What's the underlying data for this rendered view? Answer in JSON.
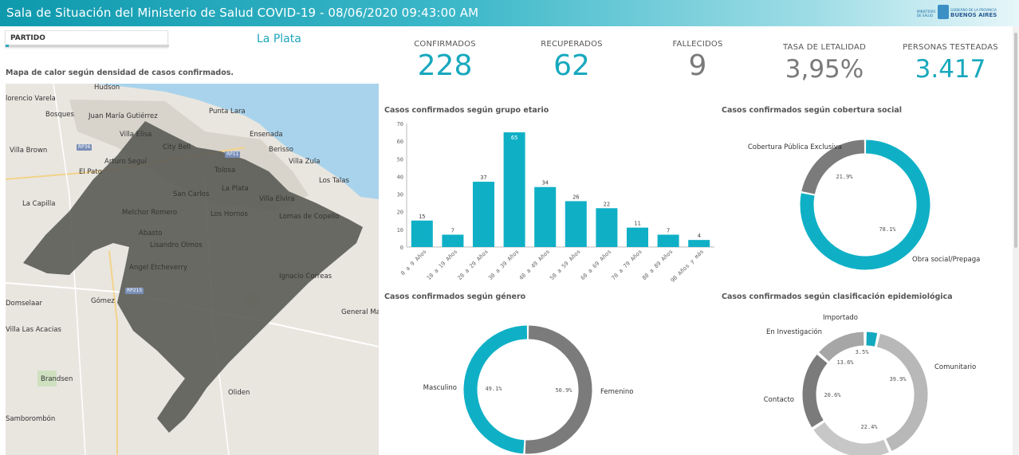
{
  "header": {
    "title": "Sala de Situación del Ministerio de Salud COVID-19 - 08/06/2020 09:43:00 AM",
    "logo_small": "MINISTERIO DE SALUD",
    "logo_top": "GOBIERNO DE LA PROVINCIA",
    "logo_main": "BUENOS AIRES"
  },
  "filter": {
    "label": "PARTIDO",
    "selected_value": "La Plata"
  },
  "map": {
    "title": "Mapa de calor según densidad de casos confirmados.",
    "places": {
      "hudson": "Hudson",
      "florencio_varela": "lorencio Varela",
      "bosques": "Bosques",
      "juan_maria_gutierrez": "Juan María Gutiérrez",
      "villa_elisa": "Villa Elisa",
      "punta_lara": "Punta Lara",
      "ensenada": "Ensenada",
      "villa_brown": "Villa Brown",
      "city_bell": "City Bell",
      "arturo_segui": "Arturo Seguí",
      "berisso": "Berisso",
      "villa_zula": "Villa Zula",
      "el_pato": "El Pato",
      "tolosa": "Tolosa",
      "los_talas": "Los Talas",
      "la_plata": "La Plata",
      "san_carlos": "San Carlos",
      "villa_elvira": "Villa Elvira",
      "la_capilla": "La Capilla",
      "melchor_romero": "Melchor Romero",
      "los_hornos": "Los Hornos",
      "lomas_de_copello": "Lomas de Copello",
      "abasto": "Abasto",
      "lisandro_olmos": "Lisandro Olmos",
      "angel_etcheverry": "Angel Etcheverry",
      "ignacio_correas": "Ignacio Correas",
      "domselaar": "Domselaar",
      "gomez": "Gómez",
      "general_mansilla": "General Mai",
      "villa_las_acacias": "Villa Las Acacias",
      "brandsen": "Brandsen",
      "samborombon": "Samborombón",
      "oliden": "Oliden"
    },
    "shields": {
      "rp36": "RP36",
      "rp11": "RP11",
      "rp215": "RP215"
    },
    "colors": {
      "water": "#a9d3ec",
      "land": "#e9e6e0",
      "overlay": "#5b5b55"
    }
  },
  "kpis": [
    {
      "label": "CONFIRMADOS",
      "value": "228",
      "color": "#17a8bd"
    },
    {
      "label": "RECUPERADOS",
      "value": "62",
      "color": "#17a8bd"
    },
    {
      "label": "FALLECIDOS",
      "value": "9",
      "color": "#7a7a7a"
    },
    {
      "label": "TASA DE LETALIDAD",
      "value": "3,95%",
      "color": "#7a7a7a"
    },
    {
      "label": "PERSONAS TESTEADAS",
      "value": "3.417",
      "color": "#17a8bd"
    }
  ],
  "chart_data": [
    {
      "type": "bar",
      "title": "Casos confirmados según grupo etario",
      "categories": [
        "0 a 9 Años",
        "10 a 19 Años",
        "20 a 29 Años",
        "30 a 39 Años",
        "40 a 49 Años",
        "50 a 59 Años",
        "60 a 69 Años",
        "70 a 79 Años",
        "80 a 89 Años",
        "90 Años y más"
      ],
      "values": [
        15,
        7,
        37,
        65,
        34,
        26,
        22,
        11,
        7,
        4
      ],
      "yticks": [
        0,
        10,
        20,
        30,
        40,
        50,
        60,
        70
      ],
      "ylim": [
        0,
        70
      ],
      "color": "#0fb0c6"
    },
    {
      "type": "pie",
      "title": "Casos confirmados según cobertura social",
      "labels": [
        "Obra social/Prepaga",
        "Cobertura Pública Exclusiva"
      ],
      "values": [
        78.1,
        21.9
      ],
      "value_labels": [
        "78.1%",
        "21.9%"
      ],
      "colors": [
        "#0fb0c6",
        "#7b7b7b"
      ]
    },
    {
      "type": "pie",
      "title": "Casos confirmados según género",
      "labels": [
        "Femenino",
        "Masculino"
      ],
      "values": [
        50.9,
        49.1
      ],
      "value_labels": [
        "50.9%",
        "49.1%"
      ],
      "colors": [
        "#7b7b7b",
        "#0fb0c6"
      ]
    },
    {
      "type": "pie",
      "title": "Casos confirmados según clasificación epidemiológica",
      "labels": [
        "Importado",
        "Comunitario",
        "Contacto",
        "En Investigación"
      ],
      "segments": [
        {
          "label": "Importado",
          "value": 3.5,
          "value_label": "3.5%",
          "color": "#13a9bf"
        },
        {
          "label": "Comunitario",
          "value": 39.9,
          "value_label": "39.9%",
          "color": "#b8b8b8"
        },
        {
          "label": "",
          "value": 22.4,
          "value_label": "22.4%",
          "color": "#c7c7c7"
        },
        {
          "label": "Contacto",
          "value": 20.6,
          "value_label": "20.6%",
          "color": "#7b7b7b"
        },
        {
          "label": "En Investigación",
          "value": 13.6,
          "value_label": "13.6%",
          "color": "#a6a6a6"
        }
      ]
    }
  ]
}
